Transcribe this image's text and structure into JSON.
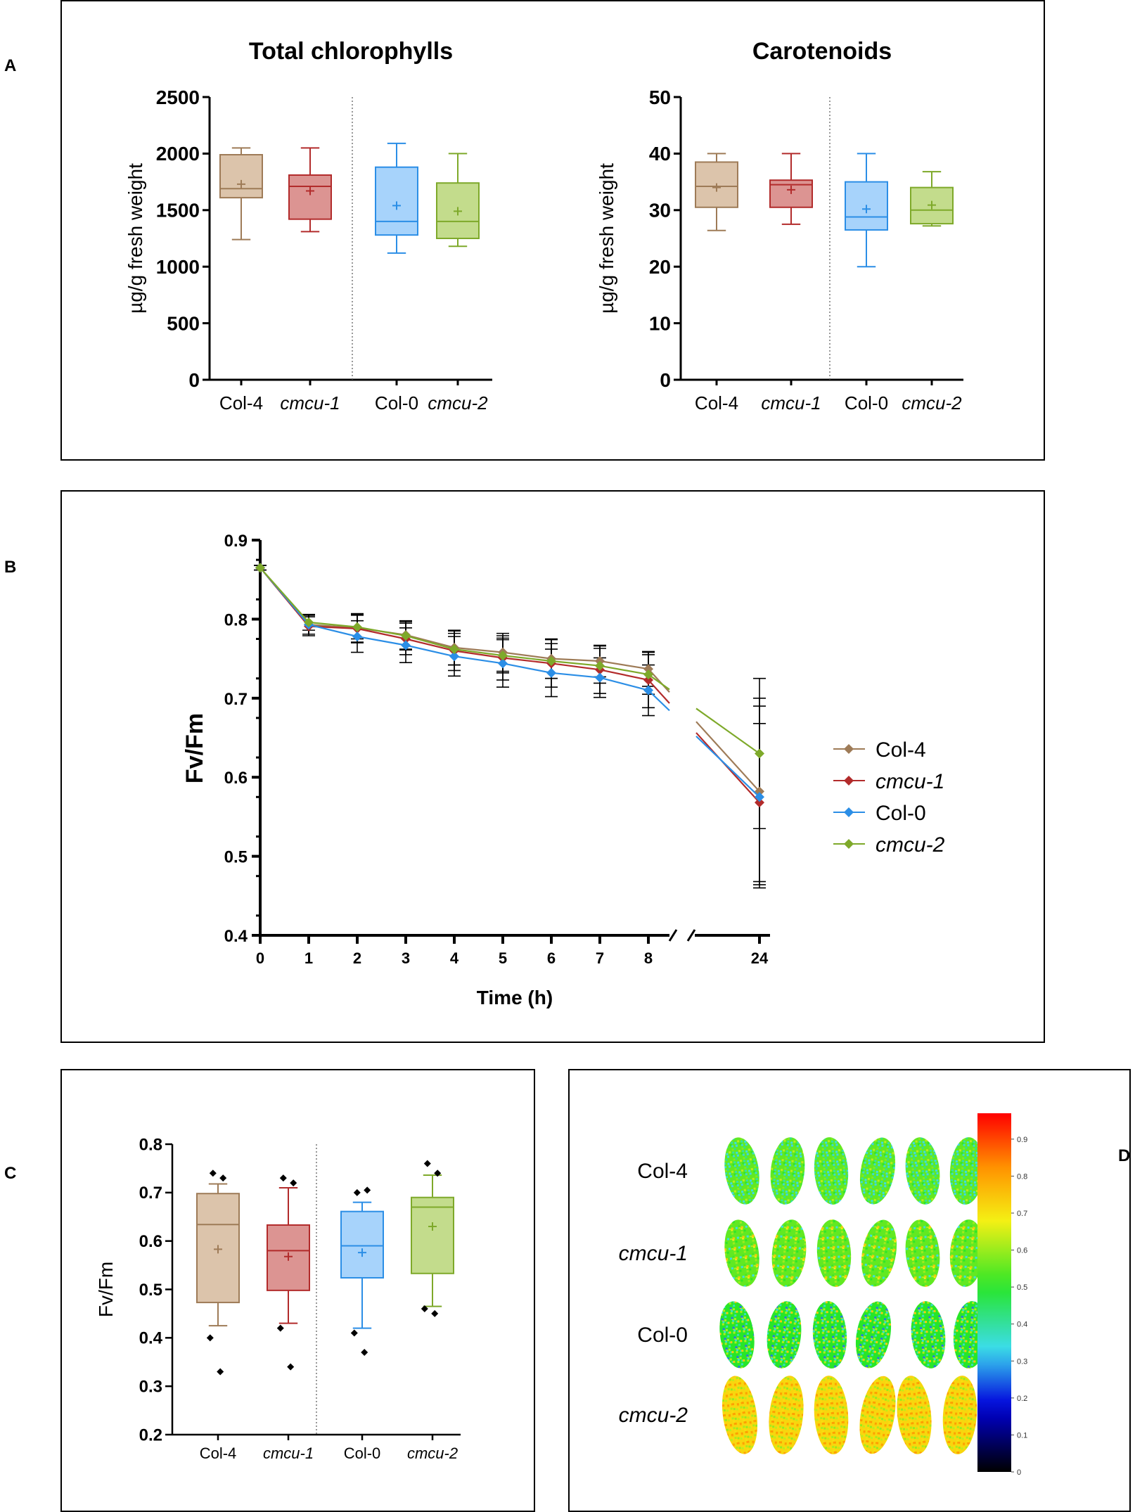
{
  "panel_letters": {
    "a": "A",
    "b": "B",
    "c": "C",
    "d": "D"
  },
  "colors": {
    "col4": "#9e7b57",
    "col4_fill": "#dcc4ab",
    "cmcu1": "#b22b2b",
    "cmcu1_fill": "#dc9492",
    "col0": "#2b8ee6",
    "col0_fill": "#a7d3fb",
    "cmcu2": "#7ea92a",
    "cmcu2_fill": "#c3dc8c"
  },
  "chart_data": [
    {
      "id": "chlorophylls",
      "type": "box",
      "title": "Total chlorophylls",
      "ylabel": "µg/g fresh weight",
      "ylim": [
        0,
        2500
      ],
      "yticks": [
        0,
        500,
        1000,
        1500,
        2000,
        2500
      ],
      "categories": [
        "Col-4",
        "cmcu-1",
        "Col-0",
        "cmcu-2"
      ],
      "boxes": [
        {
          "min": 1240,
          "q1": 1610,
          "median": 1690,
          "q3": 1990,
          "max": 2050,
          "mean": 1730
        },
        {
          "min": 1310,
          "q1": 1420,
          "median": 1710,
          "q3": 1810,
          "max": 2050,
          "mean": 1670
        },
        {
          "min": 1120,
          "q1": 1280,
          "median": 1400,
          "q3": 1880,
          "max": 2090,
          "mean": 1540
        },
        {
          "min": 1180,
          "q1": 1250,
          "median": 1400,
          "q3": 1740,
          "max": 2000,
          "mean": 1490
        }
      ]
    },
    {
      "id": "carotenoids",
      "type": "box",
      "title": "Carotenoids",
      "ylabel": "µg/g fresh weight",
      "ylim": [
        0,
        50
      ],
      "yticks": [
        0,
        10,
        20,
        30,
        40,
        50
      ],
      "categories": [
        "Col-4",
        "cmcu-1",
        "Col-0",
        "cmcu-2"
      ],
      "boxes": [
        {
          "min": 26.4,
          "q1": 30.5,
          "median": 34.2,
          "q3": 38.5,
          "max": 40.0,
          "mean": 34.0
        },
        {
          "min": 27.5,
          "q1": 30.5,
          "median": 34.5,
          "q3": 35.3,
          "max": 40.0,
          "mean": 33.6
        },
        {
          "min": 20.0,
          "q1": 26.5,
          "median": 28.8,
          "q3": 35.0,
          "max": 40.0,
          "mean": 30.2
        },
        {
          "min": 27.2,
          "q1": 27.6,
          "median": 30.0,
          "q3": 34.0,
          "max": 36.8,
          "mean": 30.9
        }
      ]
    },
    {
      "id": "fvfm_time",
      "type": "line",
      "ylabel": "Fv/Fm",
      "xlabel": "Time (h)",
      "ylim": [
        0.4,
        0.9
      ],
      "yticks": [
        "0.4",
        "0.5",
        "0.6",
        "0.7",
        "0.8",
        "0.9"
      ],
      "x": [
        0,
        1,
        2,
        3,
        4,
        5,
        6,
        7,
        8,
        24
      ],
      "xticks": [
        "0",
        "1",
        "2",
        "3",
        "4",
        "5",
        "6",
        "7",
        "8",
        "24"
      ],
      "axis_break": "between 8 and 24",
      "legend": [
        "Col-4",
        "cmcu-1",
        "Col-0",
        "cmcu-2"
      ],
      "series": [
        {
          "name": "Col-4",
          "values": [
            0.865,
            0.793,
            0.789,
            0.78,
            0.764,
            0.758,
            0.75,
            0.747,
            0.737,
            0.582
          ],
          "err": [
            0.003,
            0.012,
            0.018,
            0.018,
            0.022,
            0.024,
            0.025,
            0.02,
            0.022,
            0.118
          ]
        },
        {
          "name": "cmcu-1",
          "values": [
            0.865,
            0.791,
            0.788,
            0.775,
            0.76,
            0.751,
            0.744,
            0.736,
            0.723,
            0.568
          ],
          "err": [
            0.003,
            0.012,
            0.018,
            0.02,
            0.025,
            0.028,
            0.03,
            0.03,
            0.035,
            0.1
          ]
        },
        {
          "name": "Col-0",
          "values": [
            0.865,
            0.793,
            0.778,
            0.767,
            0.753,
            0.744,
            0.732,
            0.726,
            0.71,
            0.575
          ],
          "err": [
            0.003,
            0.012,
            0.02,
            0.022,
            0.025,
            0.03,
            0.03,
            0.025,
            0.032,
            0.115
          ]
        },
        {
          "name": "cmcu-2",
          "values": [
            0.865,
            0.796,
            0.79,
            0.779,
            0.762,
            0.754,
            0.747,
            0.741,
            0.73,
            0.63
          ],
          "err": [
            0.003,
            0.01,
            0.015,
            0.018,
            0.02,
            0.022,
            0.022,
            0.022,
            0.025,
            0.095
          ]
        }
      ]
    },
    {
      "id": "fvfm_24h",
      "type": "box",
      "ylabel": "Fv/Fm",
      "ylim": [
        0.2,
        0.8
      ],
      "yticks": [
        "0.2",
        "0.3",
        "0.4",
        "0.5",
        "0.6",
        "0.7",
        "0.8"
      ],
      "categories": [
        "Col-4",
        "cmcu-1",
        "Col-0",
        "cmcu-2"
      ],
      "boxes": [
        {
          "min": 0.425,
          "q1": 0.473,
          "median": 0.634,
          "q3": 0.698,
          "max": 0.718,
          "mean": 0.583,
          "outliers": [
            0.74,
            0.73,
            0.4,
            0.33
          ]
        },
        {
          "min": 0.43,
          "q1": 0.498,
          "median": 0.58,
          "q3": 0.633,
          "max": 0.71,
          "mean": 0.568,
          "outliers": [
            0.73,
            0.72,
            0.42,
            0.34
          ]
        },
        {
          "min": 0.42,
          "q1": 0.524,
          "median": 0.59,
          "q3": 0.661,
          "max": 0.68,
          "mean": 0.576,
          "outliers": [
            0.7,
            0.705,
            0.41,
            0.37
          ]
        },
        {
          "min": 0.465,
          "q1": 0.533,
          "median": 0.67,
          "q3": 0.69,
          "max": 0.736,
          "mean": 0.63,
          "outliers": [
            0.76,
            0.74,
            0.46,
            0.45
          ]
        }
      ]
    },
    {
      "id": "imaging",
      "type": "heatmap",
      "row_labels": [
        "Col-4",
        "cmcu-1",
        "Col-0",
        "cmcu-2"
      ],
      "colorbar_ticks": [
        "0",
        "0.1",
        "0.2",
        "0.3",
        "0.4",
        "0.5",
        "0.6",
        "0.7",
        "0.8",
        "0.9"
      ],
      "colorbar_range": [
        0,
        0.97
      ],
      "leaves_per_row": [
        6,
        6,
        6,
        6
      ],
      "row_mean_values": [
        0.55,
        0.55,
        0.5,
        0.72
      ]
    }
  ]
}
